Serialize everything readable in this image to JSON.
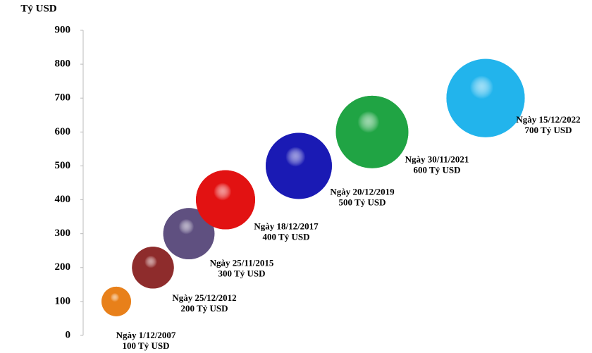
{
  "chart_data": {
    "type": "bubble",
    "y_label": "Tỷ USD",
    "categories": [
      "Ngày 1/12/2007",
      "Ngày 25/12/2012",
      "Ngày 25/11/2015",
      "Ngày 18/12/2017",
      "Ngày 20/12/2019",
      "Ngày 30/11/2021",
      "Ngày 15/12/2022"
    ],
    "values": [
      100,
      200,
      300,
      400,
      500,
      600,
      700
    ],
    "value_labels": [
      "100 Tỷ USD",
      "200 Tỷ USD",
      "300 Tỷ USD",
      "400 Tỷ USD",
      "500 Tỷ USD",
      "600 Tỷ USD",
      "700 Tỷ USD"
    ],
    "colors": [
      "#e8801a",
      "#8e2c2c",
      "#5f5080",
      "#e21212",
      "#1a1ab4",
      "#20a444",
      "#22b4ec"
    ],
    "ylim": [
      0,
      900
    ],
    "yticks": [
      0,
      100,
      200,
      300,
      400,
      500,
      600,
      700,
      800,
      900
    ]
  }
}
